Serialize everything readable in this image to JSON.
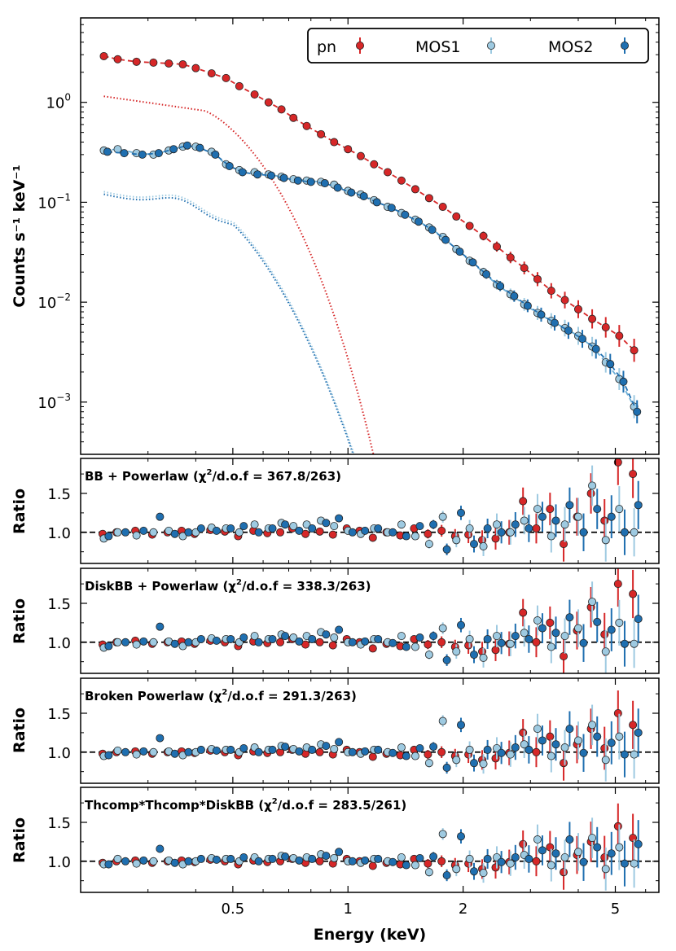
{
  "chart_data": [
    {
      "type": "scatter",
      "panel": "spectrum",
      "ylabel": "Counts s⁻¹ keV⁻¹",
      "xscale": "log",
      "yscale": "log",
      "xlim": [
        0.2,
        6.5
      ],
      "ylim": [
        0.0003,
        7
      ],
      "yticks": [
        {
          "value": 1,
          "base": "10",
          "exp": "0"
        },
        {
          "value": 0.1,
          "base": "10",
          "exp": "−1"
        },
        {
          "value": 0.01,
          "base": "10",
          "exp": "−2"
        },
        {
          "value": 0.001,
          "base": "10",
          "exp": "−3"
        }
      ],
      "legend": {
        "placement": "top-right",
        "entries": [
          "pn",
          "MOS1",
          "MOS2"
        ]
      },
      "series": [
        {
          "name": "pn",
          "color": "#d62728",
          "x": [
            0.23,
            0.25,
            0.28,
            0.31,
            0.34,
            0.37,
            0.4,
            0.44,
            0.48,
            0.52,
            0.57,
            0.62,
            0.67,
            0.72,
            0.78,
            0.85,
            0.92,
            1.0,
            1.08,
            1.17,
            1.27,
            1.38,
            1.5,
            1.63,
            1.77,
            1.92,
            2.08,
            2.26,
            2.45,
            2.66,
            2.89,
            3.13,
            3.4,
            3.69,
            4.0,
            4.35,
            4.72,
            5.12,
            5.6
          ],
          "y": [
            2.9,
            2.7,
            2.55,
            2.5,
            2.45,
            2.4,
            2.2,
            1.95,
            1.75,
            1.45,
            1.2,
            1.0,
            0.85,
            0.7,
            0.58,
            0.48,
            0.4,
            0.34,
            0.29,
            0.24,
            0.2,
            0.165,
            0.135,
            0.11,
            0.09,
            0.072,
            0.058,
            0.046,
            0.036,
            0.028,
            0.022,
            0.017,
            0.013,
            0.0105,
            0.0085,
            0.0068,
            0.0056,
            0.0046,
            0.0033
          ]
        },
        {
          "name": "MOS1",
          "color": "#9ecae1",
          "x": [
            0.23,
            0.25,
            0.28,
            0.31,
            0.34,
            0.37,
            0.4,
            0.44,
            0.48,
            0.52,
            0.57,
            0.62,
            0.67,
            0.72,
            0.78,
            0.85,
            0.92,
            1.0,
            1.08,
            1.17,
            1.27,
            1.38,
            1.5,
            1.63,
            1.77,
            1.92,
            2.08,
            2.26,
            2.45,
            2.66,
            2.89,
            3.13,
            3.4,
            3.69,
            4.0,
            4.35,
            4.72,
            5.12,
            5.6
          ],
          "y": [
            0.33,
            0.34,
            0.31,
            0.3,
            0.33,
            0.36,
            0.36,
            0.32,
            0.24,
            0.21,
            0.2,
            0.19,
            0.18,
            0.17,
            0.165,
            0.16,
            0.15,
            0.13,
            0.12,
            0.105,
            0.09,
            0.078,
            0.067,
            0.056,
            0.045,
            0.034,
            0.026,
            0.02,
            0.015,
            0.012,
            0.0095,
            0.0078,
            0.0065,
            0.0055,
            0.0046,
            0.0036,
            0.0025,
            0.0017,
            0.0009
          ]
        },
        {
          "name": "MOS2",
          "color": "#1f6fb0",
          "x": [
            0.235,
            0.26,
            0.29,
            0.32,
            0.35,
            0.38,
            0.41,
            0.45,
            0.49,
            0.53,
            0.58,
            0.63,
            0.68,
            0.74,
            0.8,
            0.87,
            0.94,
            1.02,
            1.1,
            1.19,
            1.3,
            1.41,
            1.53,
            1.66,
            1.8,
            1.96,
            2.12,
            2.3,
            2.5,
            2.72,
            2.95,
            3.2,
            3.47,
            3.77,
            4.1,
            4.45,
            4.85,
            5.25,
            5.7
          ],
          "y": [
            0.32,
            0.31,
            0.3,
            0.31,
            0.34,
            0.37,
            0.35,
            0.3,
            0.23,
            0.2,
            0.19,
            0.185,
            0.175,
            0.165,
            0.16,
            0.155,
            0.14,
            0.125,
            0.115,
            0.1,
            0.088,
            0.075,
            0.064,
            0.053,
            0.042,
            0.032,
            0.025,
            0.019,
            0.0145,
            0.0115,
            0.0092,
            0.0075,
            0.0062,
            0.0052,
            0.0043,
            0.0034,
            0.0024,
            0.0016,
            0.0008
          ]
        }
      ]
    },
    {
      "type": "scatter",
      "panel": "ratio-1",
      "title": "BB + Powerlaw (χ²/d.o.f = 367.8/263)",
      "title_pre": "BB + Powerlaw (χ",
      "title_sup": "2",
      "title_post": "/d.o.f = 367.8/263)",
      "ylabel": "Ratio",
      "ylim": [
        0.6,
        1.95
      ],
      "yticks": [
        "1.0",
        "1.5"
      ],
      "series": [
        {
          "name": "pn",
          "y": [
            0.98,
            1.0,
            1.02,
            0.97,
            1.0,
            1.02,
            0.98,
            1.03,
            1.01,
            0.95,
            1.02,
            0.99,
            1.0,
            1.05,
            0.98,
            1.01,
            0.97,
            1.05,
            1.02,
            0.93,
            1.0,
            0.96,
            1.05,
            0.98,
            1.02,
            0.95,
            0.97,
            0.9,
            0.92,
            1.0,
            1.4,
            1.05,
            1.3,
            0.85,
            1.2,
            1.5,
            1.15,
            1.9,
            1.75
          ]
        },
        {
          "name": "MOS1",
          "y": [
            0.92,
            1.0,
            0.96,
            1.0,
            1.02,
            0.95,
            1.0,
            1.06,
            1.05,
            1.0,
            1.1,
            1.05,
            1.12,
            1.08,
            1.1,
            1.15,
            1.08,
            1.02,
            0.98,
            1.05,
            1.0,
            1.1,
            0.95,
            0.85,
            1.2,
            0.9,
            1.05,
            0.82,
            1.1,
            1.0,
            1.15,
            1.3,
            0.95,
            1.1,
            1.2,
            1.6,
            0.9,
            1.3,
            1.0
          ]
        },
        {
          "name": "MOS2",
          "y": [
            0.95,
            1.0,
            1.02,
            1.2,
            0.98,
            1.0,
            1.05,
            1.02,
            1.05,
            1.08,
            1.0,
            1.05,
            1.1,
            1.02,
            1.05,
            1.12,
            1.18,
            1.0,
            1.02,
            1.05,
            1.0,
            0.95,
            1.08,
            1.1,
            0.78,
            1.25,
            0.85,
            1.05,
            1.0,
            1.1,
            1.05,
            1.2,
            1.15,
            1.35,
            1.0,
            1.3,
            1.2,
            1.0,
            1.35
          ]
        }
      ]
    },
    {
      "type": "scatter",
      "panel": "ratio-2",
      "title": "DiskBB + Powerlaw (χ²/d.o.f = 338.3/263)",
      "title_pre": "DiskBB + Powerlaw (χ",
      "title_sup": "2",
      "title_post": "/d.o.f = 338.3/263)",
      "ylabel": "Ratio",
      "ylim": [
        0.6,
        1.95
      ],
      "yticks": [
        "1.0",
        "1.5"
      ],
      "series": [
        {
          "name": "pn",
          "y": [
            0.97,
            1.0,
            1.02,
            0.98,
            1.0,
            1.01,
            0.98,
            1.02,
            1.0,
            0.95,
            1.01,
            0.99,
            1.0,
            1.04,
            0.97,
            1.0,
            0.96,
            1.04,
            1.0,
            0.92,
            0.98,
            0.95,
            1.04,
            0.97,
            1.0,
            0.94,
            0.96,
            0.88,
            0.9,
            0.98,
            1.38,
            1.0,
            1.25,
            0.82,
            1.15,
            1.45,
            1.1,
            1.75,
            1.62
          ]
        },
        {
          "name": "MOS1",
          "y": [
            0.93,
            1.0,
            0.97,
            1.0,
            1.01,
            0.95,
            1.0,
            1.05,
            1.04,
            1.0,
            1.08,
            1.04,
            1.1,
            1.06,
            1.08,
            1.13,
            1.06,
            1.0,
            0.97,
            1.04,
            1.0,
            1.08,
            0.94,
            0.84,
            1.18,
            0.88,
            1.04,
            0.8,
            1.08,
            0.98,
            1.12,
            1.28,
            0.94,
            1.08,
            1.18,
            1.52,
            0.88,
            1.25,
            0.98
          ]
        },
        {
          "name": "MOS2",
          "y": [
            0.95,
            1.0,
            1.01,
            1.2,
            0.98,
            1.0,
            1.04,
            1.02,
            1.04,
            1.06,
            1.0,
            1.04,
            1.08,
            1.01,
            1.04,
            1.1,
            1.16,
            1.0,
            1.01,
            1.04,
            0.99,
            0.94,
            1.06,
            1.08,
            0.77,
            1.22,
            0.84,
            1.04,
            0.99,
            1.08,
            1.04,
            1.18,
            1.12,
            1.32,
            0.99,
            1.26,
            1.16,
            0.98,
            1.3
          ]
        }
      ]
    },
    {
      "type": "scatter",
      "panel": "ratio-3",
      "title": "Broken Powerlaw (χ²/d.o.f = 291.3/263)",
      "title_pre": "Broken Powerlaw (χ",
      "title_sup": "2",
      "title_post": "/d.o.f = 291.3/263)",
      "ylabel": "Ratio",
      "ylim": [
        0.6,
        1.95
      ],
      "yticks": [
        "1.0",
        "1.5"
      ],
      "series": [
        {
          "name": "pn",
          "y": [
            0.98,
            1.0,
            1.01,
            0.98,
            1.0,
            1.01,
            0.99,
            1.02,
            1.0,
            0.96,
            1.01,
            0.99,
            1.0,
            1.03,
            0.98,
            1.0,
            0.97,
            1.03,
            1.0,
            0.94,
            0.98,
            0.96,
            1.03,
            0.97,
            1.0,
            0.95,
            0.97,
            0.9,
            0.92,
            0.99,
            1.25,
            1.0,
            1.2,
            0.86,
            1.1,
            1.3,
            1.05,
            1.5,
            1.35
          ]
        },
        {
          "name": "MOS1",
          "y": [
            0.95,
            1.02,
            0.97,
            1.0,
            1.01,
            0.96,
            1.0,
            1.04,
            1.03,
            1.0,
            1.06,
            1.03,
            1.08,
            1.04,
            1.06,
            1.1,
            1.04,
            1.0,
            0.98,
            1.03,
            1.0,
            1.06,
            0.95,
            0.86,
            1.4,
            0.9,
            1.03,
            0.85,
            1.05,
            0.97,
            1.1,
            1.3,
            0.95,
            1.06,
            1.15,
            1.35,
            0.9,
            1.2,
            0.97
          ]
        },
        {
          "name": "MOS2",
          "y": [
            0.96,
            1.0,
            1.01,
            1.18,
            0.98,
            1.0,
            1.03,
            1.02,
            1.03,
            1.05,
            1.0,
            1.03,
            1.07,
            1.01,
            1.03,
            1.08,
            1.13,
            1.0,
            1.01,
            1.03,
            0.99,
            0.95,
            1.05,
            1.07,
            0.8,
            1.35,
            0.86,
            1.03,
            0.99,
            1.06,
            1.03,
            1.15,
            1.1,
            1.3,
            0.99,
            1.2,
            1.12,
            0.97,
            1.25
          ]
        }
      ]
    },
    {
      "type": "scatter",
      "panel": "ratio-4",
      "title": "Thcomp*Thcomp*DiskBB (χ²/d.o.f = 283.5/261)",
      "title_pre": "Thcomp*Thcomp*DiskBB (χ",
      "title_sup": "2",
      "title_post": "/d.o.f = 283.5/261)",
      "ylabel": "Ratio",
      "xlabel": "Energy (keV)",
      "xticks": [
        {
          "value": 0.5,
          "label": "0.5"
        },
        {
          "value": 1,
          "label": "1"
        },
        {
          "value": 2,
          "label": "2"
        },
        {
          "value": 5,
          "label": "5"
        }
      ],
      "ylim": [
        0.6,
        1.95
      ],
      "yticks": [
        "1.0",
        "1.5"
      ],
      "series": [
        {
          "name": "pn",
          "y": [
            0.98,
            1.0,
            1.01,
            0.98,
            1.0,
            1.01,
            0.99,
            1.02,
            1.0,
            0.96,
            1.01,
            0.99,
            1.0,
            1.03,
            0.98,
            1.0,
            0.97,
            1.03,
            1.0,
            0.94,
            0.98,
            0.96,
            1.03,
            0.97,
            1.0,
            0.95,
            0.97,
            0.9,
            0.92,
            0.99,
            1.22,
            1.0,
            1.18,
            0.86,
            1.08,
            1.25,
            1.05,
            1.45,
            1.3
          ]
        },
        {
          "name": "MOS1",
          "y": [
            0.96,
            1.03,
            0.97,
            1.0,
            1.01,
            0.96,
            1.0,
            1.04,
            1.03,
            1.0,
            1.05,
            1.03,
            1.07,
            1.04,
            1.05,
            1.09,
            1.04,
            1.0,
            0.98,
            1.03,
            1.0,
            1.05,
            0.95,
            0.86,
            1.35,
            0.9,
            1.03,
            0.85,
            1.05,
            0.97,
            1.08,
            1.28,
            0.95,
            1.05,
            1.12,
            1.3,
            0.9,
            1.18,
            0.97
          ]
        },
        {
          "name": "MOS2",
          "y": [
            0.96,
            1.0,
            1.01,
            1.16,
            0.98,
            1.0,
            1.03,
            1.02,
            1.03,
            1.05,
            1.0,
            1.03,
            1.06,
            1.01,
            1.03,
            1.07,
            1.12,
            1.0,
            1.01,
            1.03,
            0.99,
            0.95,
            1.04,
            1.06,
            0.82,
            1.32,
            0.87,
            1.03,
            0.99,
            1.05,
            1.03,
            1.14,
            1.1,
            1.28,
            0.99,
            1.18,
            1.1,
            0.97,
            1.22
          ]
        }
      ]
    }
  ]
}
